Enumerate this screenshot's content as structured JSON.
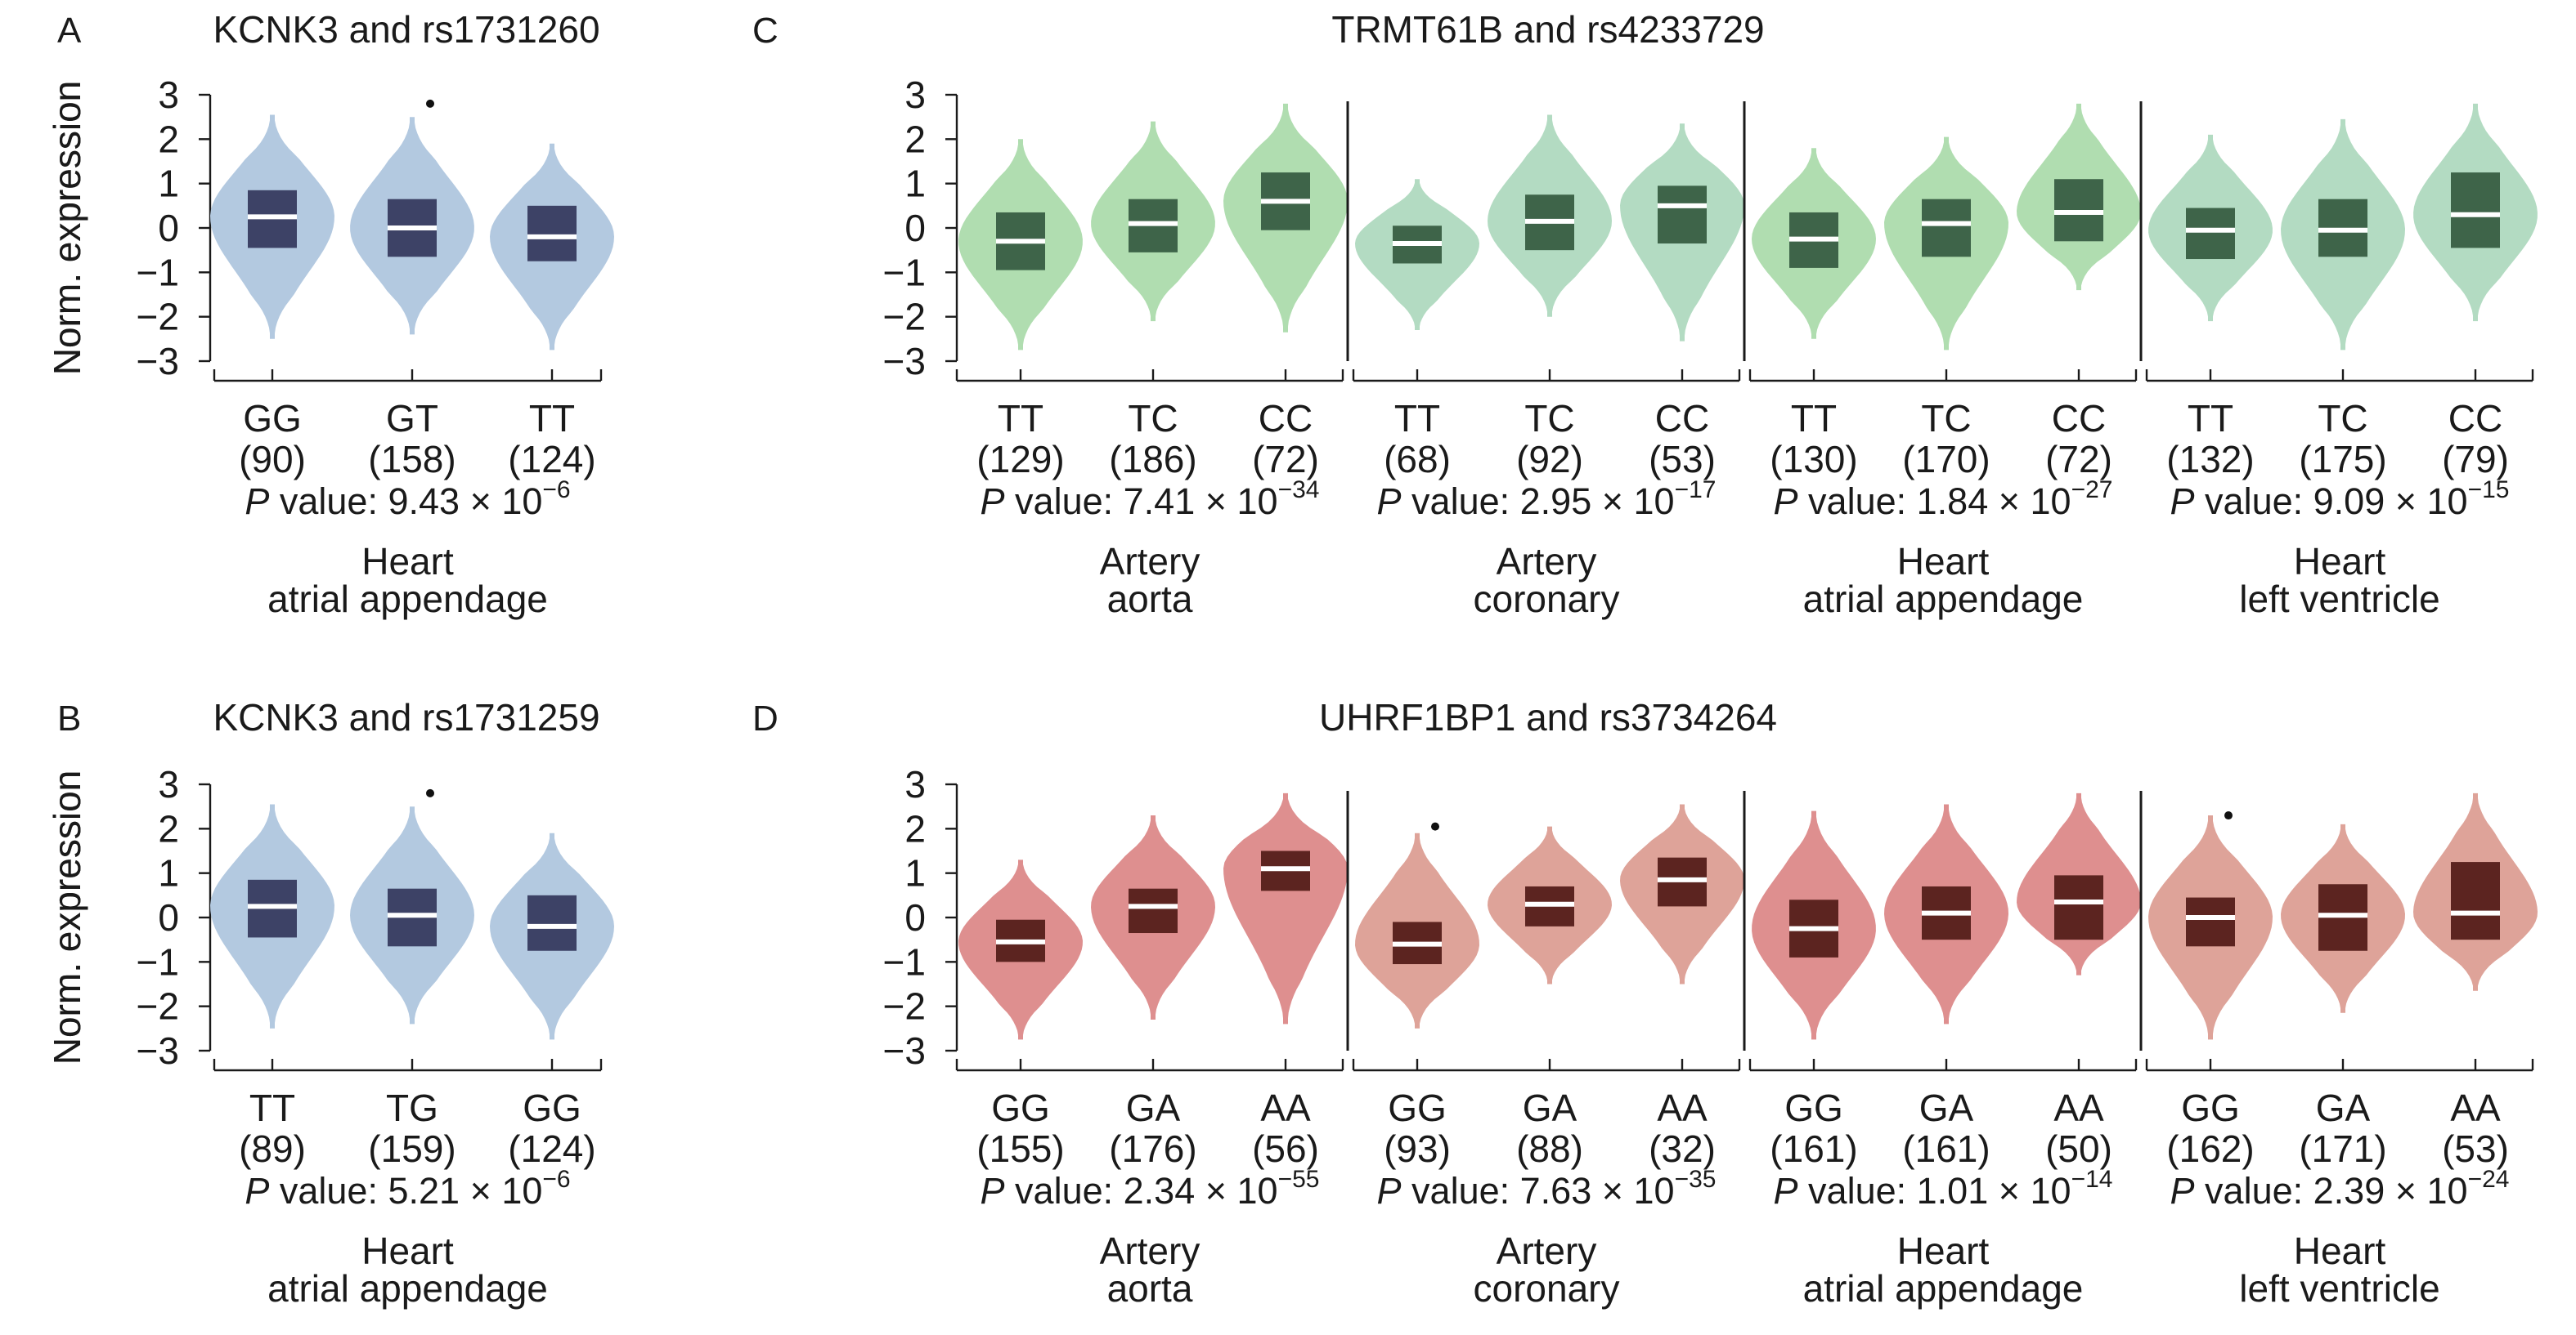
{
  "chart_data": [
    {
      "type": "violin",
      "panel": "A",
      "title": "KCNK3 and rs1731260",
      "ylabel": "Norm. expression",
      "ylim": [
        -3,
        3
      ],
      "yticks": [
        "3",
        "2",
        "1",
        "0",
        "−1",
        "−2",
        "−3"
      ],
      "violin_color": "#b3c9e0",
      "box_color": "#3d4266",
      "groups": [
        {
          "tissue": [
            "Heart",
            "atrial appendage"
          ],
          "p_mantissa": "9.43",
          "p_exp": "−6",
          "categories": [
            {
              "label": "GG",
              "n": "(90)",
              "median": 0.25,
              "q1": -0.45,
              "q3": 0.85,
              "min": -2.5,
              "max": 2.55,
              "outliers": []
            },
            {
              "label": "GT",
              "n": "(158)",
              "median": 0.0,
              "q1": -0.65,
              "q3": 0.65,
              "min": -2.4,
              "max": 2.5,
              "outliers": [
                2.8
              ]
            },
            {
              "label": "TT",
              "n": "(124)",
              "median": -0.2,
              "q1": -0.75,
              "q3": 0.5,
              "min": -2.75,
              "max": 1.9,
              "outliers": []
            }
          ]
        }
      ]
    },
    {
      "type": "violin",
      "panel": "B",
      "title": "KCNK3 and rs1731259",
      "ylabel": "Norm. expression",
      "ylim": [
        -3,
        3
      ],
      "yticks": [
        "3",
        "2",
        "1",
        "0",
        "−1",
        "−2",
        "−3"
      ],
      "violin_color": "#b3c9e0",
      "box_color": "#3d4266",
      "groups": [
        {
          "tissue": [
            "Heart",
            "atrial appendage"
          ],
          "p_mantissa": "5.21",
          "p_exp": "−6",
          "categories": [
            {
              "label": "TT",
              "n": "(89)",
              "median": 0.25,
              "q1": -0.45,
              "q3": 0.85,
              "min": -2.5,
              "max": 2.55,
              "outliers": []
            },
            {
              "label": "TG",
              "n": "(159)",
              "median": 0.05,
              "q1": -0.65,
              "q3": 0.65,
              "min": -2.4,
              "max": 2.5,
              "outliers": [
                2.8
              ]
            },
            {
              "label": "GG",
              "n": "(124)",
              "median": -0.2,
              "q1": -0.75,
              "q3": 0.5,
              "min": -2.75,
              "max": 1.9,
              "outliers": []
            }
          ]
        }
      ]
    },
    {
      "type": "violin",
      "panel": "C",
      "title": "TRMT61B and rs4233729",
      "ylabel": "Norm. expression",
      "ylim": [
        -3,
        3
      ],
      "yticks": [
        "3",
        "2",
        "1",
        "0",
        "−1",
        "−2",
        "−3"
      ],
      "violin_color": "#b0ddb0",
      "violin_color_alt": "#b3dbc2",
      "box_color": "#3e6449",
      "groups": [
        {
          "tissue": [
            "Artery",
            "aorta"
          ],
          "p_mantissa": "7.41",
          "p_exp": "−34",
          "categories": [
            {
              "label": "TT",
              "n": "(129)",
              "median": -0.3,
              "q1": -0.95,
              "q3": 0.35,
              "min": -2.75,
              "max": 2.0,
              "outliers": []
            },
            {
              "label": "TC",
              "n": "(186)",
              "median": 0.1,
              "q1": -0.55,
              "q3": 0.65,
              "min": -2.1,
              "max": 2.4,
              "outliers": []
            },
            {
              "label": "CC",
              "n": "(72)",
              "median": 0.6,
              "q1": -0.05,
              "q3": 1.25,
              "min": -2.35,
              "max": 2.8,
              "outliers": []
            }
          ]
        },
        {
          "tissue": [
            "Artery",
            "coronary"
          ],
          "p_mantissa": "2.95",
          "p_exp": "−17",
          "categories": [
            {
              "label": "TT",
              "n": "(68)",
              "median": -0.35,
              "q1": -0.8,
              "q3": 0.05,
              "min": -2.3,
              "max": 1.1,
              "outliers": []
            },
            {
              "label": "TC",
              "n": "(92)",
              "median": 0.15,
              "q1": -0.5,
              "q3": 0.75,
              "min": -2.0,
              "max": 2.55,
              "outliers": []
            },
            {
              "label": "CC",
              "n": "(53)",
              "median": 0.5,
              "q1": -0.35,
              "q3": 0.95,
              "min": -2.55,
              "max": 2.35,
              "outliers": []
            }
          ]
        },
        {
          "tissue": [
            "Heart",
            "atrial appendage"
          ],
          "p_mantissa": "1.84",
          "p_exp": "−27",
          "categories": [
            {
              "label": "TT",
              "n": "(130)",
              "median": -0.25,
              "q1": -0.9,
              "q3": 0.35,
              "min": -2.5,
              "max": 1.8,
              "outliers": []
            },
            {
              "label": "TC",
              "n": "(170)",
              "median": 0.1,
              "q1": -0.65,
              "q3": 0.65,
              "min": -2.75,
              "max": 2.05,
              "outliers": []
            },
            {
              "label": "CC",
              "n": "(72)",
              "median": 0.35,
              "q1": -0.3,
              "q3": 1.1,
              "min": -1.4,
              "max": 2.8,
              "outliers": []
            }
          ]
        },
        {
          "tissue": [
            "Heart",
            "left ventricle"
          ],
          "p_mantissa": "9.09",
          "p_exp": "−15",
          "categories": [
            {
              "label": "TT",
              "n": "(132)",
              "median": -0.05,
              "q1": -0.7,
              "q3": 0.45,
              "min": -2.1,
              "max": 2.1,
              "outliers": []
            },
            {
              "label": "TC",
              "n": "(175)",
              "median": -0.05,
              "q1": -0.65,
              "q3": 0.65,
              "min": -2.75,
              "max": 2.45,
              "outliers": []
            },
            {
              "label": "CC",
              "n": "(79)",
              "median": 0.3,
              "q1": -0.45,
              "q3": 1.25,
              "min": -2.1,
              "max": 2.8,
              "outliers": []
            }
          ]
        }
      ]
    },
    {
      "type": "violin",
      "panel": "D",
      "title": "UHRF1BP1 and rs3734264",
      "ylabel": "Norm. expression",
      "ylim": [
        -3,
        3
      ],
      "yticks": [
        "3",
        "2",
        "1",
        "0",
        "−1",
        "−2",
        "−3"
      ],
      "violin_color": "#de8f8f",
      "violin_color_alt": "#dea399",
      "box_color": "#5c2420",
      "groups": [
        {
          "tissue": [
            "Artery",
            "aorta"
          ],
          "p_mantissa": "2.34",
          "p_exp": "−55",
          "categories": [
            {
              "label": "GG",
              "n": "(155)",
              "median": -0.55,
              "q1": -1.0,
              "q3": -0.05,
              "min": -2.75,
              "max": 1.3,
              "outliers": []
            },
            {
              "label": "GA",
              "n": "(176)",
              "median": 0.25,
              "q1": -0.35,
              "q3": 0.65,
              "min": -2.3,
              "max": 2.3,
              "outliers": []
            },
            {
              "label": "AA",
              "n": "(56)",
              "median": 1.1,
              "q1": 0.6,
              "q3": 1.5,
              "min": -2.4,
              "max": 2.8,
              "outliers": []
            }
          ]
        },
        {
          "tissue": [
            "Artery",
            "coronary"
          ],
          "p_mantissa": "7.63",
          "p_exp": "−35",
          "categories": [
            {
              "label": "GG",
              "n": "(93)",
              "median": -0.6,
              "q1": -1.05,
              "q3": -0.1,
              "min": -2.5,
              "max": 1.9,
              "outliers": [
                2.05
              ]
            },
            {
              "label": "GA",
              "n": "(88)",
              "median": 0.3,
              "q1": -0.2,
              "q3": 0.7,
              "min": -1.5,
              "max": 2.05,
              "outliers": []
            },
            {
              "label": "AA",
              "n": "(32)",
              "median": 0.85,
              "q1": 0.25,
              "q3": 1.35,
              "min": -1.5,
              "max": 2.55,
              "outliers": []
            }
          ]
        },
        {
          "tissue": [
            "Heart",
            "atrial appendage"
          ],
          "p_mantissa": "1.01",
          "p_exp": "−14",
          "categories": [
            {
              "label": "GG",
              "n": "(161)",
              "median": -0.25,
              "q1": -0.9,
              "q3": 0.4,
              "min": -2.75,
              "max": 2.4,
              "outliers": []
            },
            {
              "label": "GA",
              "n": "(161)",
              "median": 0.1,
              "q1": -0.5,
              "q3": 0.7,
              "min": -2.4,
              "max": 2.55,
              "outliers": []
            },
            {
              "label": "AA",
              "n": "(50)",
              "median": 0.35,
              "q1": -0.5,
              "q3": 0.95,
              "min": -1.3,
              "max": 2.8,
              "outliers": []
            }
          ]
        },
        {
          "tissue": [
            "Heart",
            "left ventricle"
          ],
          "p_mantissa": "2.39",
          "p_exp": "−24",
          "categories": [
            {
              "label": "GG",
              "n": "(162)",
              "median": 0.0,
              "q1": -0.65,
              "q3": 0.45,
              "min": -2.75,
              "max": 2.3,
              "outliers": [
                2.3
              ]
            },
            {
              "label": "GA",
              "n": "(171)",
              "median": 0.05,
              "q1": -0.75,
              "q3": 0.75,
              "min": -2.15,
              "max": 2.1,
              "outliers": []
            },
            {
              "label": "AA",
              "n": "(53)",
              "median": 0.1,
              "q1": -0.5,
              "q3": 1.25,
              "min": -1.65,
              "max": 2.8,
              "outliers": []
            }
          ]
        }
      ]
    }
  ]
}
